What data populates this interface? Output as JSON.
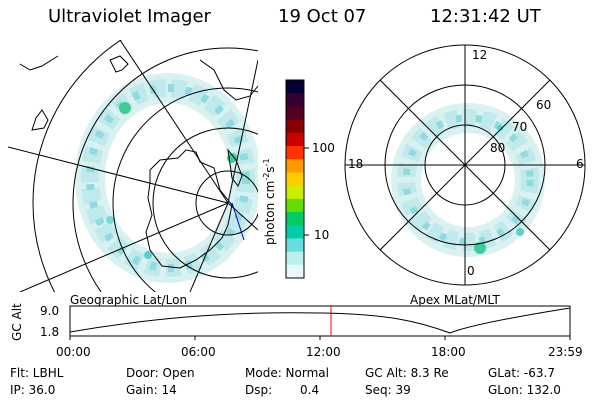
{
  "header": {
    "instrument": "Ultraviolet Imager",
    "date": "19 Oct 07",
    "time": "12:31:42 UT"
  },
  "colorbar": {
    "unit_label": "photon cm",
    "unit_sup1": "-2",
    "unit_s": "s",
    "unit_sup2": "-1",
    "tick_100": "100",
    "tick_10": "10",
    "colors": [
      "#000033",
      "#330033",
      "#550022",
      "#880000",
      "#cc0000",
      "#ff3300",
      "#ff9900",
      "#ffcc00",
      "#ccee00",
      "#66dd00",
      "#00cc66",
      "#00ccaa",
      "#66dddd",
      "#bbeeee",
      "#e8f8f8"
    ]
  },
  "left_panel": {
    "label": "Geographic Lat/Lon"
  },
  "right_panel": {
    "label": "Apex MLat/MLT",
    "mlt_12": "12",
    "mlt_18": "18",
    "mlt_6": "6",
    "mlt_0": "0",
    "lat_60": "60",
    "lat_70": "70",
    "lat_80": "80"
  },
  "timeline": {
    "axis_label": "GC Alt",
    "y_high": "9.0",
    "y_low": "1.8",
    "ticks": [
      "00:00",
      "06:00",
      "12:00",
      "18:00",
      "23:59"
    ],
    "marker_fraction": 0.522
  },
  "footer": {
    "flt": "Flt: LBHL",
    "ip": "IP: 36.0",
    "door": "Door: Open",
    "gain": "Gain: 14",
    "mode": "Mode: Normal",
    "dsp_label": "Dsp:",
    "dsp_value": "0.4",
    "gc_alt": "GC Alt: 8.3 Re",
    "seq": "Seq: 39",
    "glat": "GLat: -63.7",
    "glon": "GLon: 132.0"
  }
}
